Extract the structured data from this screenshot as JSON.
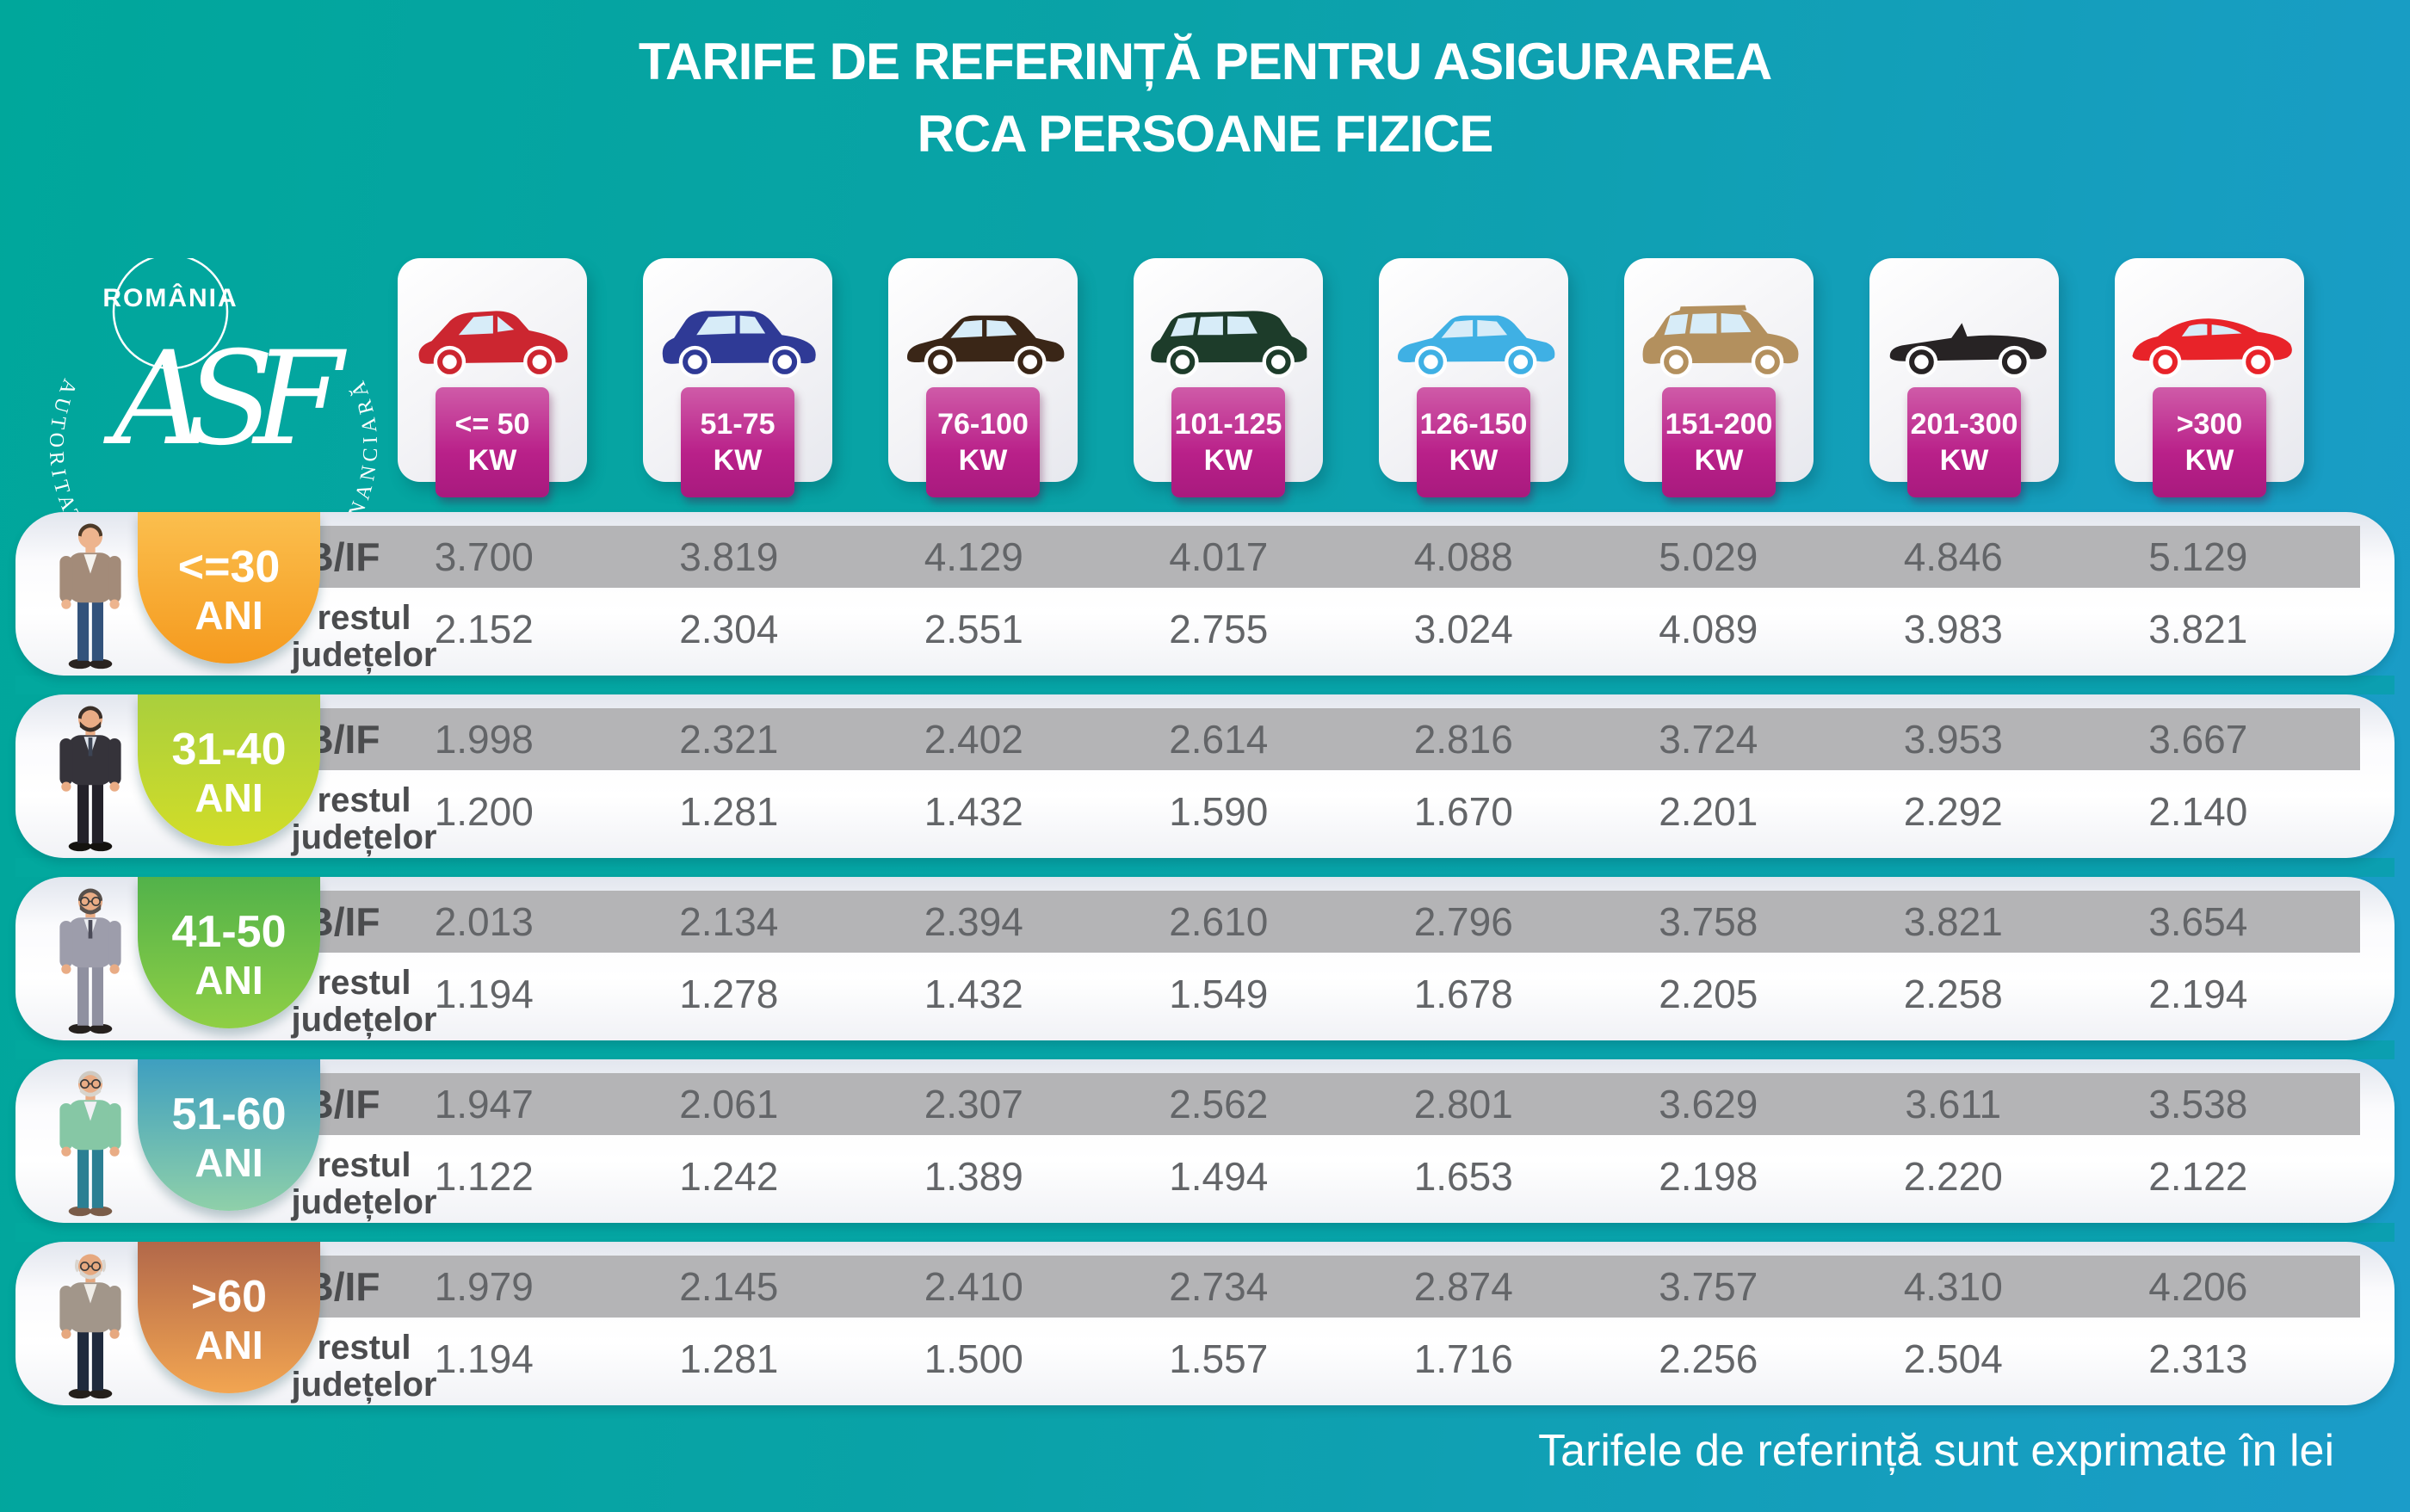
{
  "title": {
    "line1": "TARIFE DE REFERINȚĂ PENTRU ASIGURAREA",
    "line2": "RCA PERSOANE FIZICE"
  },
  "logo": {
    "country": "ROMÂNIA",
    "monogram": "ASF",
    "arc_text": "AUTORITATEA DE SUPRAVEGHERE FINANCIARĂ"
  },
  "row_labels": {
    "bif": "B/IF",
    "rest_line1": "restul",
    "rest_line2": "județelor"
  },
  "footer": {
    "note": "Tarifele de referință sunt exprimate în lei"
  },
  "theme": {
    "bg_teal": "#00a79b",
    "bg_blue": "#1b9cc9",
    "kw_badge_top": "#cf5ba8",
    "kw_badge_bottom": "#a81a7e",
    "band_gray": "#b4b4b6"
  },
  "vehicle_classes": [
    {
      "range": "<= 50",
      "unit": "KW",
      "icon": "city-car-icon",
      "type": "hatchback",
      "color": "#cc2630"
    },
    {
      "range": "51-75",
      "unit": "KW",
      "icon": "compact-suv-icon",
      "type": "suv",
      "color": "#2f3a96"
    },
    {
      "range": "76-100",
      "unit": "KW",
      "icon": "sedan-icon",
      "type": "sedan",
      "color": "#3a2617"
    },
    {
      "range": "101-125",
      "unit": "KW",
      "icon": "minivan-icon",
      "type": "minivan",
      "color": "#1d3c2a"
    },
    {
      "range": "126-150",
      "unit": "KW",
      "icon": "sedan-blue-icon",
      "type": "sedan",
      "color": "#3fb0e4"
    },
    {
      "range": "151-200",
      "unit": "KW",
      "icon": "large-suv-icon",
      "type": "bigsuv",
      "color": "#b3905e"
    },
    {
      "range": "201-300",
      "unit": "KW",
      "icon": "convertible-icon",
      "type": "convertible",
      "color": "#272324"
    },
    {
      "range": ">300",
      "unit": "KW",
      "icon": "sports-car-icon",
      "type": "sports",
      "color": "#e82329"
    }
  ],
  "age_groups": [
    {
      "age": "<=30",
      "suffix": "ANI",
      "person": "young-man-icon",
      "badge_top": "#fbbf4e",
      "badge_bottom": "#f59a1e",
      "bif": [
        "3.700",
        "3.819",
        "4.129",
        "4.017",
        "4.088",
        "5.029",
        "4.846",
        "5.129"
      ],
      "rest": [
        "2.152",
        "2.304",
        "2.551",
        "2.755",
        "3.024",
        "4.089",
        "3.983",
        "3.821"
      ]
    },
    {
      "age": "31-40",
      "suffix": "ANI",
      "person": "adult-man-icon",
      "badge_top": "#a9cf3d",
      "badge_bottom": "#d2dd28",
      "bif": [
        "1.998",
        "2.321",
        "2.402",
        "2.614",
        "2.816",
        "3.724",
        "3.953",
        "3.667"
      ],
      "rest": [
        "1.200",
        "1.281",
        "1.432",
        "1.590",
        "1.670",
        "2.201",
        "2.292",
        "2.140"
      ]
    },
    {
      "age": "41-50",
      "suffix": "ANI",
      "person": "middle-aged-man-icon",
      "badge_top": "#52b24a",
      "badge_bottom": "#8fcf45",
      "bif": [
        "2.013",
        "2.134",
        "2.394",
        "2.610",
        "2.796",
        "3.758",
        "3.821",
        "3.654"
      ],
      "rest": [
        "1.194",
        "1.278",
        "1.432",
        "1.549",
        "1.678",
        "2.205",
        "2.258",
        "2.194"
      ]
    },
    {
      "age": "51-60",
      "suffix": "ANI",
      "person": "older-man-icon",
      "badge_top": "#3e9fc0",
      "badge_bottom": "#8fd0a9",
      "bif": [
        "1.947",
        "2.061",
        "2.307",
        "2.562",
        "2.801",
        "3.629",
        "3.611",
        "3.538"
      ],
      "rest": [
        "1.122",
        "1.242",
        "1.389",
        "1.494",
        "1.653",
        "2.198",
        "2.220",
        "2.122"
      ]
    },
    {
      "age": ">60",
      "suffix": "ANI",
      "person": "elderly-man-icon",
      "badge_top": "#b2684a",
      "badge_bottom": "#f2a551",
      "bif": [
        "1.979",
        "2.145",
        "2.410",
        "2.734",
        "2.874",
        "3.757",
        "4.310",
        "4.206"
      ],
      "rest": [
        "1.194",
        "1.281",
        "1.500",
        "1.557",
        "1.716",
        "2.256",
        "2.504",
        "2.313"
      ]
    }
  ],
  "chart_data": {
    "type": "table",
    "title": "TARIFE DE REFERINȚĂ PENTRU ASIGURAREA RCA PERSOANE FIZICE",
    "unit": "lei",
    "note": "Tarifele de referință sunt exprimate în lei",
    "columns": [
      "<= 50 KW",
      "51-75 KW",
      "76-100 KW",
      "101-125 KW",
      "126-150 KW",
      "151-200 KW",
      "201-300 KW",
      ">300 KW"
    ],
    "rows": [
      {
        "age": "<=30 ANI",
        "region": "B/IF",
        "values": [
          3700,
          3819,
          4129,
          4017,
          4088,
          5029,
          4846,
          5129
        ]
      },
      {
        "age": "<=30 ANI",
        "region": "restul județelor",
        "values": [
          2152,
          2304,
          2551,
          2755,
          3024,
          4089,
          3983,
          3821
        ]
      },
      {
        "age": "31-40 ANI",
        "region": "B/IF",
        "values": [
          1998,
          2321,
          2402,
          2614,
          2816,
          3724,
          3953,
          3667
        ]
      },
      {
        "age": "31-40 ANI",
        "region": "restul județelor",
        "values": [
          1200,
          1281,
          1432,
          1590,
          1670,
          2201,
          2292,
          2140
        ]
      },
      {
        "age": "41-50 ANI",
        "region": "B/IF",
        "values": [
          2013,
          2134,
          2394,
          2610,
          2796,
          3758,
          3821,
          3654
        ]
      },
      {
        "age": "41-50 ANI",
        "region": "restul județelor",
        "values": [
          1194,
          1278,
          1432,
          1549,
          1678,
          2205,
          2258,
          2194
        ]
      },
      {
        "age": "51-60 ANI",
        "region": "B/IF",
        "values": [
          1947,
          2061,
          2307,
          2562,
          2801,
          3629,
          3611,
          3538
        ]
      },
      {
        "age": "51-60 ANI",
        "region": "restul județelor",
        "values": [
          1122,
          1242,
          1389,
          1494,
          1653,
          2198,
          2220,
          2122
        ]
      },
      {
        "age": ">60 ANI",
        "region": "B/IF",
        "values": [
          1979,
          2145,
          2410,
          2734,
          2874,
          3757,
          4310,
          4206
        ]
      },
      {
        "age": ">60 ANI",
        "region": "restul județelor",
        "values": [
          1194,
          1281,
          1500,
          1557,
          1716,
          2256,
          2504,
          2313
        ]
      }
    ]
  }
}
